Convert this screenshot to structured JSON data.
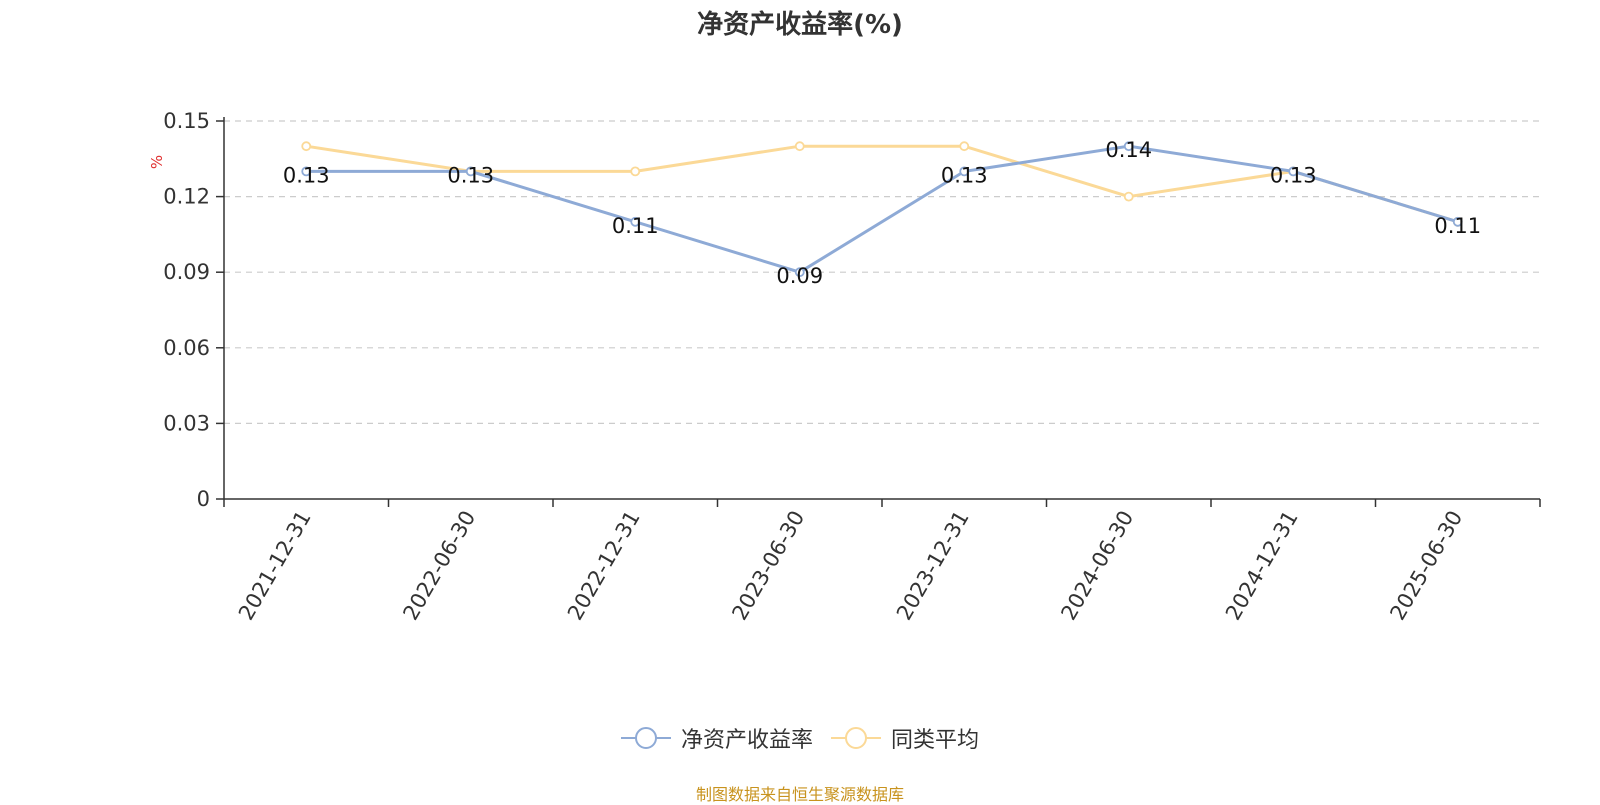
{
  "chart_data": {
    "type": "line",
    "title": "净资产收益率(%)",
    "ylabel": "%",
    "categories": [
      "2021-12-31",
      "2022-06-30",
      "2022-12-31",
      "2023-06-30",
      "2023-12-31",
      "2024-06-30",
      "2024-12-31",
      "2025-06-30"
    ],
    "ylim": [
      0,
      0.15
    ],
    "yticks": [
      "0",
      "0.03",
      "0.06",
      "0.09",
      "0.12",
      "0.15"
    ],
    "grid": true,
    "legend_position": "bottom",
    "series": [
      {
        "name": "净资产收益率",
        "color": "#8eaad6",
        "values": [
          0.13,
          0.13,
          0.11,
          0.09,
          0.13,
          0.14,
          0.13,
          0.11
        ],
        "labels": [
          "0.13",
          "0.13",
          "0.11",
          "0.09",
          "0.13",
          "0.14",
          "0.13",
          "0.11"
        ]
      },
      {
        "name": "同类平均",
        "color": "#fbd997",
        "values": [
          0.14,
          0.13,
          0.13,
          0.14,
          0.14,
          0.12,
          0.13,
          0.11
        ]
      }
    ]
  },
  "source": "制图数据来自恒生聚源数据库"
}
